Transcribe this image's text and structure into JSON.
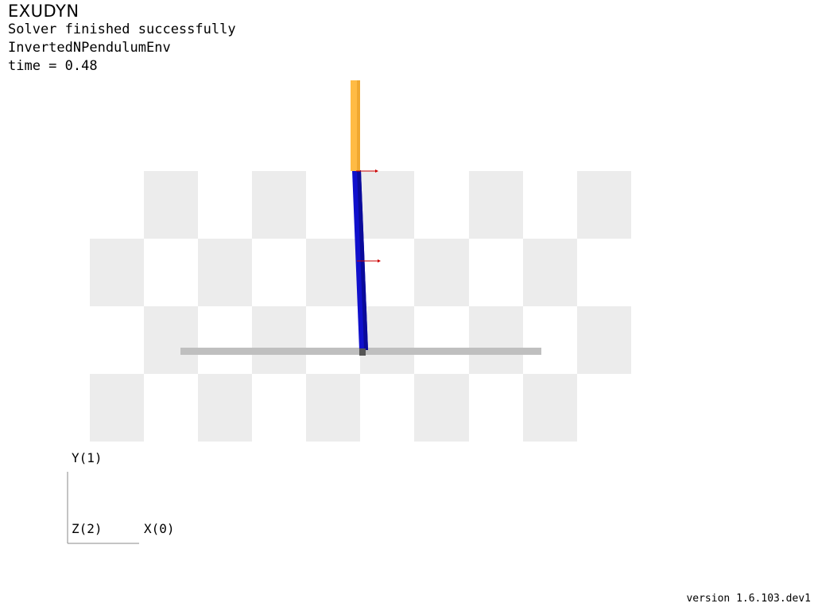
{
  "hud": {
    "app_title": "EXUDYN",
    "status": "Solver finished successfully",
    "environment": "InvertedNPendulumEnv",
    "time_text": "time = 0.48"
  },
  "triad": {
    "y_label": "Y(1)",
    "z_label": "Z(2)",
    "x_label": "X(0)"
  },
  "version_text": "version 1.6.103.dev1",
  "colors": {
    "checker_light": "#ececec",
    "rail": "#bfbfbf",
    "lower_link": "#1010cc",
    "upper_link": "#ffbb44",
    "force_marker": "#cc0000",
    "axis_line": "#888888"
  },
  "icons": {
    "joint_marker": "joint-marker-icon",
    "force_arrow": "force-arrow-icon"
  }
}
